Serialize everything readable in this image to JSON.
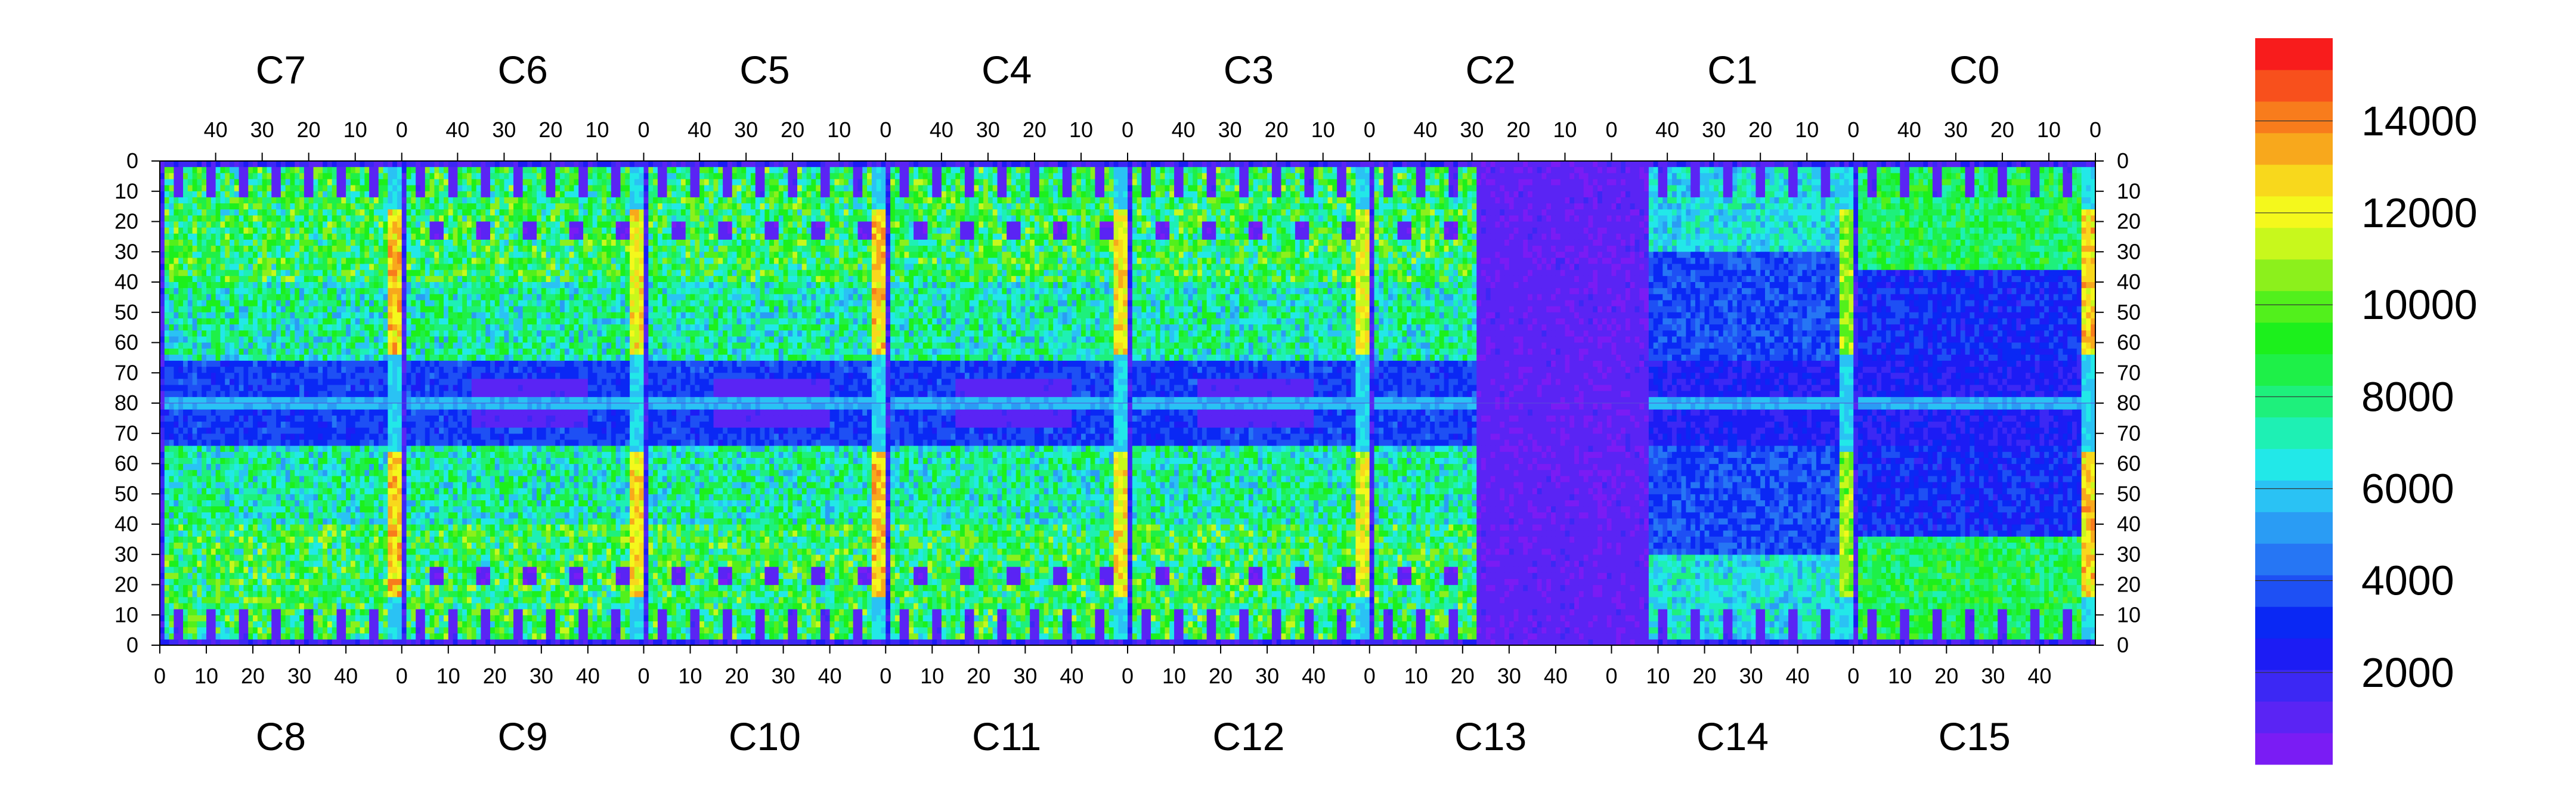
{
  "chart_data": {
    "type": "heatmap",
    "title": "",
    "xlabel": "",
    "ylabel": "",
    "grid": false,
    "legend": "colorbar-right",
    "top_chip_labels": [
      "C7",
      "C6",
      "C5",
      "C4",
      "C3",
      "C2",
      "C1",
      "C0"
    ],
    "bottom_chip_labels": [
      "C8",
      "C9",
      "C10",
      "C11",
      "C12",
      "C13",
      "C14",
      "C15"
    ],
    "top_tick_labels": [
      "40",
      "30",
      "20",
      "10",
      "0"
    ],
    "bottom_tick_labels": [
      "0",
      "10",
      "20",
      "30",
      "40"
    ],
    "y_tick_labels": [
      "0",
      "10",
      "20",
      "30",
      "40",
      "50",
      "60",
      "70",
      "80",
      "70",
      "60",
      "50",
      "40",
      "30",
      "20",
      "10",
      "0"
    ],
    "chip_columns": 52,
    "chip_rows": 80,
    "colorbar": {
      "range": [
        0,
        15800
      ],
      "tick_labels": [
        "2000",
        "4000",
        "6000",
        "8000",
        "10000",
        "12000",
        "14000"
      ],
      "tick_values": [
        2000,
        4000,
        6000,
        8000,
        10000,
        12000,
        14000
      ],
      "colors": [
        "#7a1cf4",
        "#5a24f4",
        "#3c28f4",
        "#1c1cf4",
        "#0a28f4",
        "#1e50f4",
        "#2676f4",
        "#2a9cf4",
        "#2ac2f4",
        "#22e8e8",
        "#1ef0b4",
        "#1ef07c",
        "#1ef048",
        "#1cf01c",
        "#52f01c",
        "#8cf01c",
        "#c8f81c",
        "#f4f81c",
        "#f8d81c",
        "#f8a81c",
        "#f87c1c",
        "#f8501c",
        "#f81c1c"
      ]
    },
    "regions": {
      "hot_columns": [
        {
          "chip_pair": "C7/C8",
          "side": "right",
          "value": 14000
        },
        {
          "chip_pair": "C6/C9",
          "side": "right",
          "value": 13500
        },
        {
          "chip_pair": "C5/C10",
          "side": "right",
          "value": 14000
        },
        {
          "chip_pair": "C4/C11",
          "side": "right",
          "value": 13500
        },
        {
          "chip_pair": "C3/C12",
          "side": "right",
          "value": 13000
        },
        {
          "chip_pair": "C1/C14",
          "side": "right",
          "value": 12000
        },
        {
          "chip_pair": "C0/C15",
          "side": "right",
          "value": 14000
        }
      ],
      "typical_active_value": 7500,
      "inactive_value": 800,
      "dead_region": {
        "chip_pair": "C2/C13",
        "value": 300
      }
    }
  }
}
